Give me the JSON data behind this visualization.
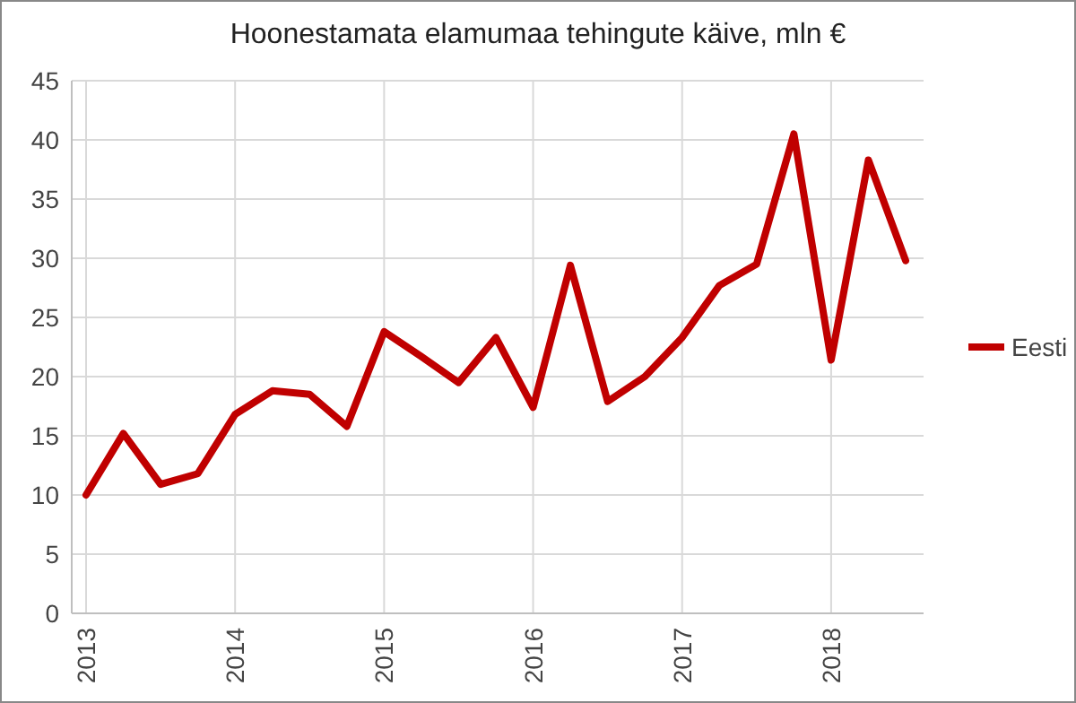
{
  "chart_data": {
    "type": "line",
    "title": "Hoonestamata elamumaa tehingute käive, mln €",
    "categories": [
      "2013",
      null,
      null,
      null,
      "2014",
      null,
      null,
      null,
      "2015",
      null,
      null,
      null,
      "2016",
      null,
      null,
      null,
      "2017",
      null,
      null,
      null,
      "2018",
      null,
      null
    ],
    "series": [
      {
        "name": "Eesti",
        "color": "#c00000",
        "values": [
          10,
          15.2,
          10.9,
          11.8,
          16.8,
          18.8,
          18.5,
          15.8,
          23.8,
          21.7,
          19.5,
          23.3,
          17.4,
          29.4,
          17.9,
          20,
          23.3,
          27.7,
          29.5,
          40.5,
          21.4,
          38.3,
          29.8
        ]
      }
    ],
    "ylim": [
      0,
      45
    ],
    "yticks": [
      0,
      5,
      10,
      15,
      20,
      25,
      30,
      35,
      40,
      45
    ],
    "grid": true,
    "legend": "right",
    "marker": "none",
    "line_style": "solid"
  }
}
